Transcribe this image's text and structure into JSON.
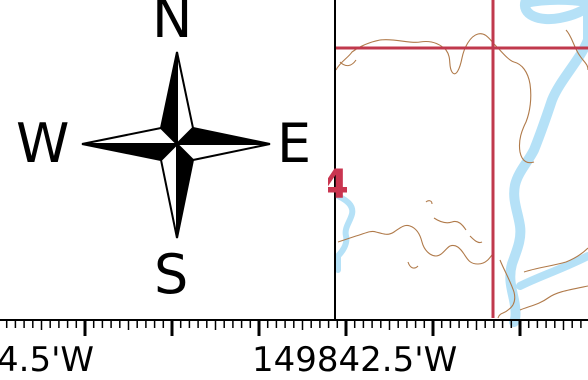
{
  "compass": {
    "north": "N",
    "south": "S",
    "east": "E",
    "west": "W"
  },
  "scale_bar": {
    "left_label": "4.5'W",
    "middle_label": "149842.5'W"
  },
  "map": {
    "grid_number": "4",
    "colors": {
      "grid_line": "#c0394d",
      "contour": "#b07a4a",
      "water": "#b5e1f7",
      "frame": "#000000"
    }
  }
}
